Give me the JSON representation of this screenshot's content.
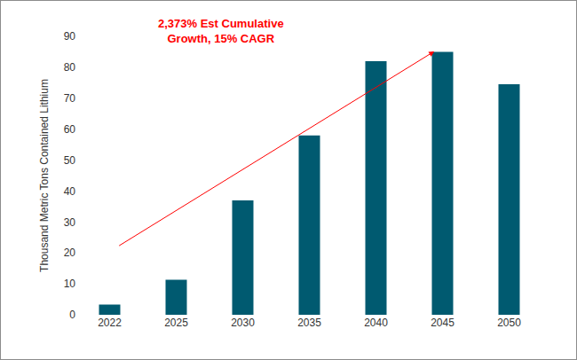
{
  "chart_data": {
    "type": "bar",
    "y_label": "Thousand Metric Tons Contained Lithium",
    "annotation": [
      "2,373% Est Cumulative",
      "Growth, 15% CAGR"
    ],
    "categories": [
      "2022",
      "2025",
      "2030",
      "2035",
      "2040",
      "2045",
      "2050"
    ],
    "values": [
      3.3,
      11.3,
      37,
      58,
      82,
      85,
      74.5
    ],
    "color": "#005a70",
    "ylim": [
      0,
      90
    ],
    "yticks": [
      0,
      10,
      20,
      30,
      40,
      50,
      60,
      70,
      80,
      90
    ],
    "grid": false
  }
}
